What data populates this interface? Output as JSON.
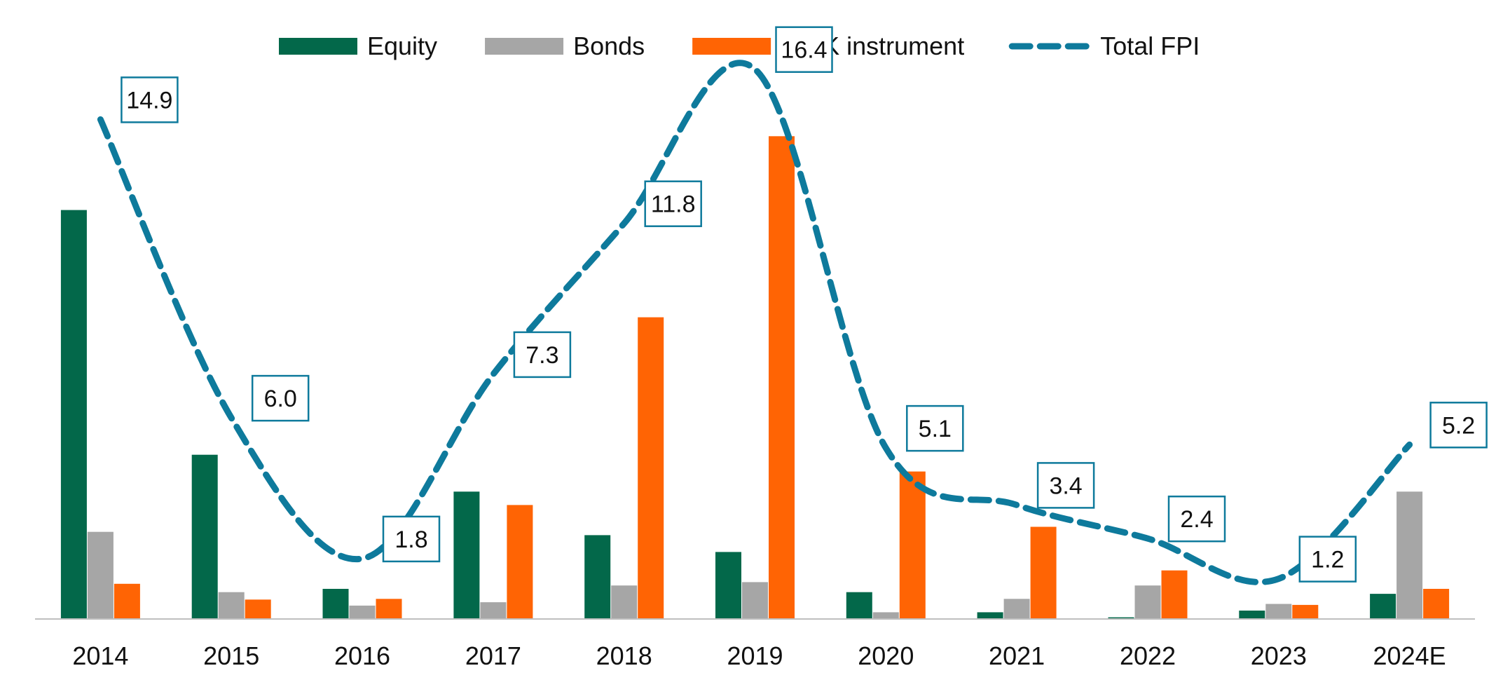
{
  "chart_data": {
    "type": "bar+line",
    "categories": [
      "2014",
      "2015",
      "2016",
      "2017",
      "2018",
      "2019",
      "2020",
      "2021",
      "2022",
      "2023",
      "2024E"
    ],
    "series": [
      {
        "name": "Equity",
        "kind": "bar",
        "color": "#03684A",
        "values": [
          12.2,
          4.9,
          0.9,
          3.8,
          2.5,
          2.0,
          0.8,
          0.2,
          0.05,
          0.25,
          0.75
        ]
      },
      {
        "name": "Bonds",
        "kind": "bar",
        "color": "#A6A6A6",
        "values": [
          2.6,
          0.8,
          0.4,
          0.5,
          1.0,
          1.1,
          0.2,
          0.6,
          1.0,
          0.45,
          3.8
        ]
      },
      {
        "name": "MMK instrument",
        "kind": "bar",
        "color": "#FF6404",
        "values": [
          1.05,
          0.58,
          0.6,
          3.4,
          9.0,
          14.4,
          4.4,
          2.75,
          1.45,
          0.42,
          0.9
        ]
      },
      {
        "name": "Total FPI",
        "kind": "line",
        "style": "dashed",
        "color": "#0E7A9C",
        "values": [
          14.9,
          6.0,
          1.8,
          7.3,
          11.8,
          16.4,
          5.1,
          3.4,
          2.4,
          1.2,
          5.2
        ],
        "labels": [
          "14.9",
          "6.0",
          "1.8",
          "7.3",
          "11.8",
          "16.4",
          "5.1",
          "3.4",
          "2.4",
          "1.2",
          "5.2"
        ]
      }
    ],
    "legend": [
      "Equity",
      "Bonds",
      "MMK instrument",
      "Total FPI"
    ],
    "legend_position": "top",
    "ylim": [
      0,
      18
    ],
    "grid": false,
    "title": "",
    "xlabel": "",
    "ylabel": ""
  }
}
